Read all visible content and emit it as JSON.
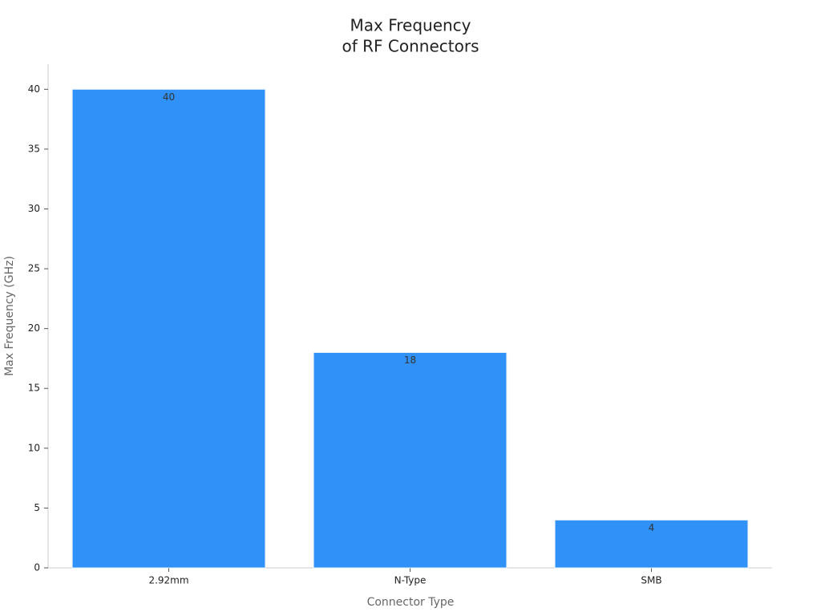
{
  "chart_data": {
    "type": "bar",
    "title": [
      "Max Frequency",
      "of RF Connectors"
    ],
    "x_label": "Connector Type",
    "y_label": "Max Frequency (GHz)",
    "categories": [
      "2.92mm",
      "N-Type",
      "SMB"
    ],
    "values": [
      40,
      18,
      4
    ],
    "color": "#3092f8",
    "ylim": [
      0,
      42.1
    ],
    "yticks": [
      0,
      5,
      10,
      15,
      20,
      25,
      30,
      35,
      40
    ],
    "grid": false
  }
}
